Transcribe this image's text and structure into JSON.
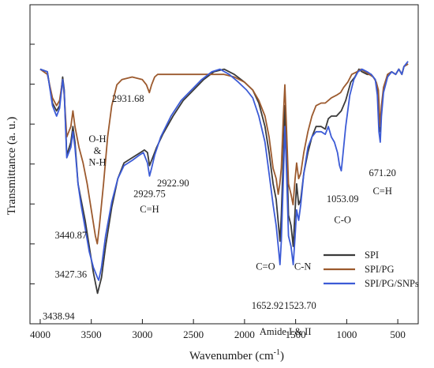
{
  "chart_data": {
    "type": "line",
    "xlabel": "Wavenumber (cm",
    "xlabel_sup": "-1",
    "xlabel_end": ")",
    "ylabel": "Transmittance (a. u.)",
    "xlim": [
      4100,
      300
    ],
    "x_reversed": true,
    "x_ticks": [
      4000,
      3500,
      3000,
      2500,
      2000,
      1500,
      1000,
      500
    ],
    "x_tick_labels": [
      "4000",
      "3500",
      "3000",
      "2500",
      "2000",
      "1500",
      "1000",
      "500"
    ],
    "y_tick_count": 7,
    "ylim": [
      0,
      100
    ],
    "legend_position": "bottom-right",
    "series": [
      {
        "name": "SPI",
        "color": "#3a3a3a",
        "points": [
          [
            4000,
            88
          ],
          [
            3930,
            87
          ],
          [
            3880,
            75
          ],
          [
            3840,
            72
          ],
          [
            3810,
            74
          ],
          [
            3780,
            85
          ],
          [
            3765,
            80
          ],
          [
            3740,
            55
          ],
          [
            3700,
            60
          ],
          [
            3680,
            66
          ],
          [
            3660,
            60
          ],
          [
            3630,
            44
          ],
          [
            3600,
            38
          ],
          [
            3560,
            30
          ],
          [
            3520,
            20
          ],
          [
            3480,
            10
          ],
          [
            3438.94,
            2
          ],
          [
            3400,
            8
          ],
          [
            3360,
            20
          ],
          [
            3300,
            35
          ],
          [
            3240,
            46
          ],
          [
            3180,
            52
          ],
          [
            3100,
            54
          ],
          [
            3020,
            56
          ],
          [
            2980,
            57
          ],
          [
            2950,
            56
          ],
          [
            2929.75,
            51
          ],
          [
            2900,
            54
          ],
          [
            2860,
            58
          ],
          [
            2800,
            63
          ],
          [
            2700,
            70
          ],
          [
            2600,
            76
          ],
          [
            2500,
            80
          ],
          [
            2400,
            84
          ],
          [
            2300,
            87
          ],
          [
            2200,
            88
          ],
          [
            2100,
            86
          ],
          [
            2000,
            83
          ],
          [
            1920,
            80
          ],
          [
            1860,
            75
          ],
          [
            1800,
            66
          ],
          [
            1760,
            56
          ],
          [
            1720,
            44
          ],
          [
            1690,
            38
          ],
          [
            1665,
            27
          ],
          [
            1652.92,
            22
          ],
          [
            1640,
            32
          ],
          [
            1620,
            55
          ],
          [
            1605,
            74
          ],
          [
            1590,
            60
          ],
          [
            1570,
            32
          ],
          [
            1545,
            28
          ],
          [
            1523.7,
            20
          ],
          [
            1505,
            34
          ],
          [
            1490,
            44
          ],
          [
            1470,
            36
          ],
          [
            1450,
            38
          ],
          [
            1420,
            48
          ],
          [
            1380,
            56
          ],
          [
            1340,
            62
          ],
          [
            1300,
            66
          ],
          [
            1250,
            66
          ],
          [
            1210,
            65
          ],
          [
            1180,
            69
          ],
          [
            1150,
            70
          ],
          [
            1100,
            70
          ],
          [
            1053.09,
            72
          ],
          [
            1010,
            76
          ],
          [
            960,
            83
          ],
          [
            920,
            85
          ],
          [
            880,
            88
          ],
          [
            850,
            87
          ],
          [
            800,
            86
          ],
          [
            760,
            86
          ],
          [
            720,
            84
          ],
          [
            700,
            80
          ],
          [
            680,
            66
          ],
          [
            671.2,
            64
          ],
          [
            660,
            72
          ],
          [
            640,
            80
          ],
          [
            600,
            86
          ],
          [
            560,
            87
          ],
          [
            520,
            86
          ],
          [
            490,
            88
          ],
          [
            460,
            86
          ],
          [
            440,
            89
          ],
          [
            400,
            90
          ]
        ]
      },
      {
        "name": "SPI/PG",
        "color": "#9c5a2e",
        "points": [
          [
            4000,
            88
          ],
          [
            3930,
            86
          ],
          [
            3880,
            77
          ],
          [
            3840,
            74
          ],
          [
            3810,
            76
          ],
          [
            3780,
            84
          ],
          [
            3765,
            78
          ],
          [
            3740,
            62
          ],
          [
            3700,
            66
          ],
          [
            3680,
            72
          ],
          [
            3660,
            66
          ],
          [
            3620,
            58
          ],
          [
            3580,
            52
          ],
          [
            3540,
            44
          ],
          [
            3500,
            34
          ],
          [
            3460,
            24
          ],
          [
            3440.87,
            21
          ],
          [
            3420,
            28
          ],
          [
            3380,
            44
          ],
          [
            3340,
            62
          ],
          [
            3300,
            74
          ],
          [
            3250,
            82
          ],
          [
            3200,
            84
          ],
          [
            3100,
            85
          ],
          [
            3000,
            84
          ],
          [
            2960,
            82
          ],
          [
            2931.68,
            79
          ],
          [
            2910,
            82
          ],
          [
            2880,
            85
          ],
          [
            2850,
            86
          ],
          [
            2800,
            86
          ],
          [
            2700,
            86
          ],
          [
            2600,
            86
          ],
          [
            2500,
            86
          ],
          [
            2400,
            86
          ],
          [
            2300,
            86
          ],
          [
            2200,
            86
          ],
          [
            2100,
            85
          ],
          [
            2000,
            83
          ],
          [
            1920,
            80
          ],
          [
            1860,
            76
          ],
          [
            1800,
            70
          ],
          [
            1760,
            62
          ],
          [
            1720,
            50
          ],
          [
            1690,
            46
          ],
          [
            1670,
            40
          ],
          [
            1655,
            44
          ],
          [
            1640,
            50
          ],
          [
            1620,
            70
          ],
          [
            1605,
            82
          ],
          [
            1590,
            66
          ],
          [
            1570,
            44
          ],
          [
            1545,
            40
          ],
          [
            1525,
            36
          ],
          [
            1505,
            46
          ],
          [
            1490,
            52
          ],
          [
            1470,
            46
          ],
          [
            1450,
            48
          ],
          [
            1420,
            56
          ],
          [
            1380,
            64
          ],
          [
            1340,
            70
          ],
          [
            1300,
            74
          ],
          [
            1250,
            75
          ],
          [
            1210,
            75
          ],
          [
            1180,
            76
          ],
          [
            1150,
            77
          ],
          [
            1100,
            78
          ],
          [
            1060,
            79
          ],
          [
            1030,
            81
          ],
          [
            990,
            83
          ],
          [
            950,
            86
          ],
          [
            900,
            87
          ],
          [
            860,
            88
          ],
          [
            820,
            87
          ],
          [
            780,
            86
          ],
          [
            740,
            85
          ],
          [
            710,
            83
          ],
          [
            690,
            80
          ],
          [
            675,
            68
          ],
          [
            671.2,
            66
          ],
          [
            660,
            74
          ],
          [
            640,
            81
          ],
          [
            600,
            86
          ],
          [
            560,
            87
          ],
          [
            520,
            86
          ],
          [
            490,
            88
          ],
          [
            460,
            86
          ],
          [
            440,
            89
          ],
          [
            400,
            90
          ]
        ]
      },
      {
        "name": "SPI/PG/SNPs",
        "color": "#3c5bd6",
        "points": [
          [
            4000,
            88
          ],
          [
            3930,
            87
          ],
          [
            3880,
            74
          ],
          [
            3840,
            70
          ],
          [
            3810,
            73
          ],
          [
            3780,
            84
          ],
          [
            3765,
            79
          ],
          [
            3740,
            54
          ],
          [
            3700,
            58
          ],
          [
            3680,
            64
          ],
          [
            3660,
            58
          ],
          [
            3630,
            44
          ],
          [
            3600,
            36
          ],
          [
            3560,
            27
          ],
          [
            3520,
            18
          ],
          [
            3480,
            12
          ],
          [
            3440,
            8
          ],
          [
            3427.36,
            7
          ],
          [
            3400,
            12
          ],
          [
            3360,
            24
          ],
          [
            3300,
            37
          ],
          [
            3240,
            46
          ],
          [
            3180,
            51
          ],
          [
            3100,
            53
          ],
          [
            3030,
            55
          ],
          [
            2990,
            56
          ],
          [
            2950,
            52
          ],
          [
            2930,
            47
          ],
          [
            2910,
            50
          ],
          [
            2880,
            55
          ],
          [
            2820,
            62
          ],
          [
            2720,
            70
          ],
          [
            2620,
            76
          ],
          [
            2520,
            80
          ],
          [
            2420,
            84
          ],
          [
            2320,
            87
          ],
          [
            2240,
            88
          ],
          [
            2150,
            86
          ],
          [
            2060,
            83
          ],
          [
            1980,
            80
          ],
          [
            1920,
            77
          ],
          [
            1860,
            70
          ],
          [
            1800,
            60
          ],
          [
            1760,
            48
          ],
          [
            1720,
            36
          ],
          [
            1690,
            28
          ],
          [
            1665,
            18
          ],
          [
            1652.92,
            13
          ],
          [
            1640,
            22
          ],
          [
            1620,
            46
          ],
          [
            1605,
            66
          ],
          [
            1590,
            50
          ],
          [
            1570,
            24
          ],
          [
            1545,
            20
          ],
          [
            1523.7,
            13
          ],
          [
            1505,
            24
          ],
          [
            1490,
            34
          ],
          [
            1470,
            30
          ],
          [
            1450,
            36
          ],
          [
            1420,
            48
          ],
          [
            1380,
            58
          ],
          [
            1340,
            62
          ],
          [
            1300,
            64
          ],
          [
            1250,
            64
          ],
          [
            1210,
            63
          ],
          [
            1180,
            66
          ],
          [
            1150,
            62
          ],
          [
            1120,
            60
          ],
          [
            1090,
            56
          ],
          [
            1070,
            51
          ],
          [
            1053.09,
            49
          ],
          [
            1040,
            54
          ],
          [
            1010,
            66
          ],
          [
            970,
            78
          ],
          [
            930,
            84
          ],
          [
            890,
            87
          ],
          [
            850,
            88
          ],
          [
            800,
            87
          ],
          [
            760,
            86
          ],
          [
            720,
            84
          ],
          [
            700,
            78
          ],
          [
            685,
            64
          ],
          [
            671.2,
            60
          ],
          [
            660,
            70
          ],
          [
            640,
            79
          ],
          [
            600,
            85
          ],
          [
            560,
            87
          ],
          [
            520,
            86
          ],
          [
            490,
            88
          ],
          [
            460,
            86
          ],
          [
            440,
            89
          ],
          [
            400,
            91
          ]
        ]
      }
    ],
    "annotations": [
      {
        "text": "O-H",
        "x": 3440,
        "y": 60
      },
      {
        "text": "&",
        "x": 3440,
        "y": 55.5
      },
      {
        "text": "N-H",
        "x": 3440,
        "y": 51
      },
      {
        "text": "2931.68",
        "x": 3140,
        "y": 75.5
      },
      {
        "text": "2922.90",
        "x": 2700,
        "y": 43
      },
      {
        "text": "2929.75",
        "x": 2930,
        "y": 39
      },
      {
        "text": "C=H",
        "x": 2930,
        "y": 33
      },
      {
        "text": "3440.87",
        "x": 3700,
        "y": 23
      },
      {
        "text": "3427.36",
        "x": 3700,
        "y": 8
      },
      {
        "text": "3438.94",
        "x": 3820,
        "y": -8
      },
      {
        "text": "1053.09",
        "x": 1040,
        "y": 37
      },
      {
        "text": "C-O",
        "x": 1040,
        "y": 29
      },
      {
        "text": "671.20",
        "x": 650,
        "y": 47
      },
      {
        "text": "C=H",
        "x": 650,
        "y": 40
      },
      {
        "text": "C=O",
        "x": 1795,
        "y": 11
      },
      {
        "text": "C-N",
        "x": 1430,
        "y": 11
      },
      {
        "text": "1652.92",
        "x": 1775,
        "y": -4
      },
      {
        "text": "1523.70",
        "x": 1455,
        "y": -4
      },
      {
        "text": "Amide I & II",
        "x": 1600,
        "y": -14
      }
    ]
  }
}
